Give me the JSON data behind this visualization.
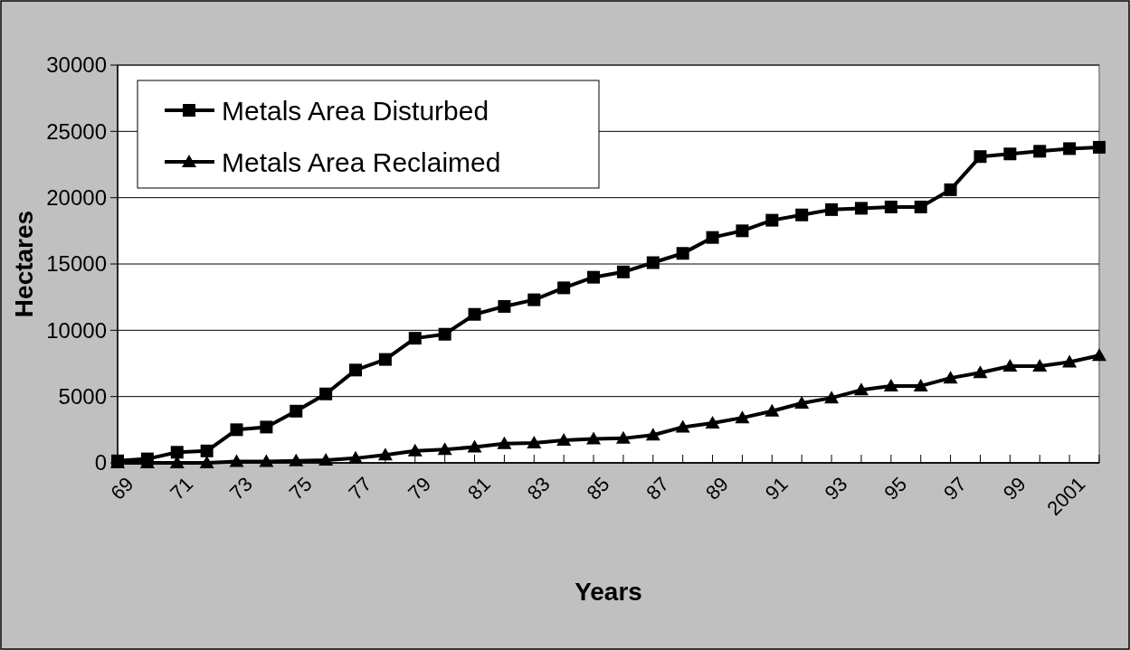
{
  "chart_data": {
    "type": "line",
    "xlabel": "Years",
    "ylabel": "Hectares",
    "categories": [
      "69",
      null,
      "71",
      null,
      "73",
      null,
      "75",
      null,
      "77",
      null,
      "79",
      null,
      "81",
      null,
      "83",
      null,
      "85",
      null,
      "87",
      null,
      "89",
      null,
      "91",
      null,
      "93",
      null,
      "95",
      null,
      "97",
      null,
      "99",
      null,
      "2001",
      null
    ],
    "series": [
      {
        "name": "Metals Area Disturbed",
        "color": "#000000",
        "marker": "square",
        "values": [
          150,
          300,
          800,
          900,
          2500,
          2700,
          3900,
          5200,
          7000,
          7800,
          9400,
          9700,
          11200,
          11800,
          12300,
          13200,
          14000,
          14400,
          15100,
          15800,
          17000,
          17500,
          18300,
          18700,
          19100,
          19200,
          19300,
          19300,
          20600,
          23100,
          23300,
          23500,
          23700,
          23800
        ]
      },
      {
        "name": "Metals Area Reclaimed",
        "color": "#000000",
        "marker": "triangle",
        "values": [
          0,
          0,
          0,
          0,
          100,
          100,
          150,
          200,
          350,
          600,
          900,
          1000,
          1200,
          1450,
          1500,
          1700,
          1800,
          1850,
          2100,
          2700,
          3000,
          3400,
          3900,
          4500,
          4900,
          5500,
          5800,
          5800,
          6400,
          6800,
          7300,
          7300,
          7600,
          8100
        ]
      }
    ],
    "ylim": [
      0,
      30000
    ],
    "yticks": [
      0,
      5000,
      10000,
      15000,
      20000,
      25000,
      30000
    ],
    "grid": "y",
    "legend": "top left",
    "line_style": "solid"
  }
}
